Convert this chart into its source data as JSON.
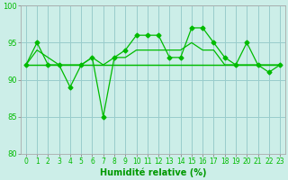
{
  "background_color": "#cceee8",
  "grid_color": "#99cccc",
  "line_color": "#00bb00",
  "xlabel": "Humidité relative (%)",
  "xlabel_color": "#009900",
  "ylim": [
    80,
    100
  ],
  "xlim": [
    -0.5,
    23.5
  ],
  "yticks": [
    80,
    85,
    90,
    95,
    100
  ],
  "xticks": [
    0,
    1,
    2,
    3,
    4,
    5,
    6,
    7,
    8,
    9,
    10,
    11,
    12,
    13,
    14,
    15,
    16,
    17,
    18,
    19,
    20,
    21,
    22,
    23
  ],
  "series1": [
    92,
    95,
    92,
    92,
    89,
    92,
    93,
    85,
    93,
    94,
    96,
    96,
    96,
    93,
    93,
    97,
    97,
    95,
    93,
    92,
    95,
    92,
    91,
    92
  ],
  "series2": [
    92,
    94,
    93,
    92,
    92,
    92,
    93,
    92,
    93,
    93,
    94,
    94,
    94,
    94,
    94,
    95,
    94,
    94,
    92,
    92,
    92,
    92,
    92,
    92
  ],
  "series3": [
    92,
    92,
    92,
    92,
    92,
    92,
    92,
    92,
    92,
    92,
    92,
    92,
    92,
    92,
    92,
    92,
    92,
    92,
    92,
    92,
    92,
    92,
    92,
    92
  ],
  "series4": [
    92,
    92,
    92,
    92,
    92,
    92,
    92,
    92,
    92,
    92,
    92,
    92,
    92,
    92,
    92,
    92,
    92,
    92,
    92,
    92,
    92,
    92,
    92,
    92
  ],
  "figsize": [
    3.2,
    2.0
  ],
  "dpi": 100,
  "tick_fontsize": 5.5,
  "ylabel_fontsize": 6,
  "xlabel_fontsize": 7
}
